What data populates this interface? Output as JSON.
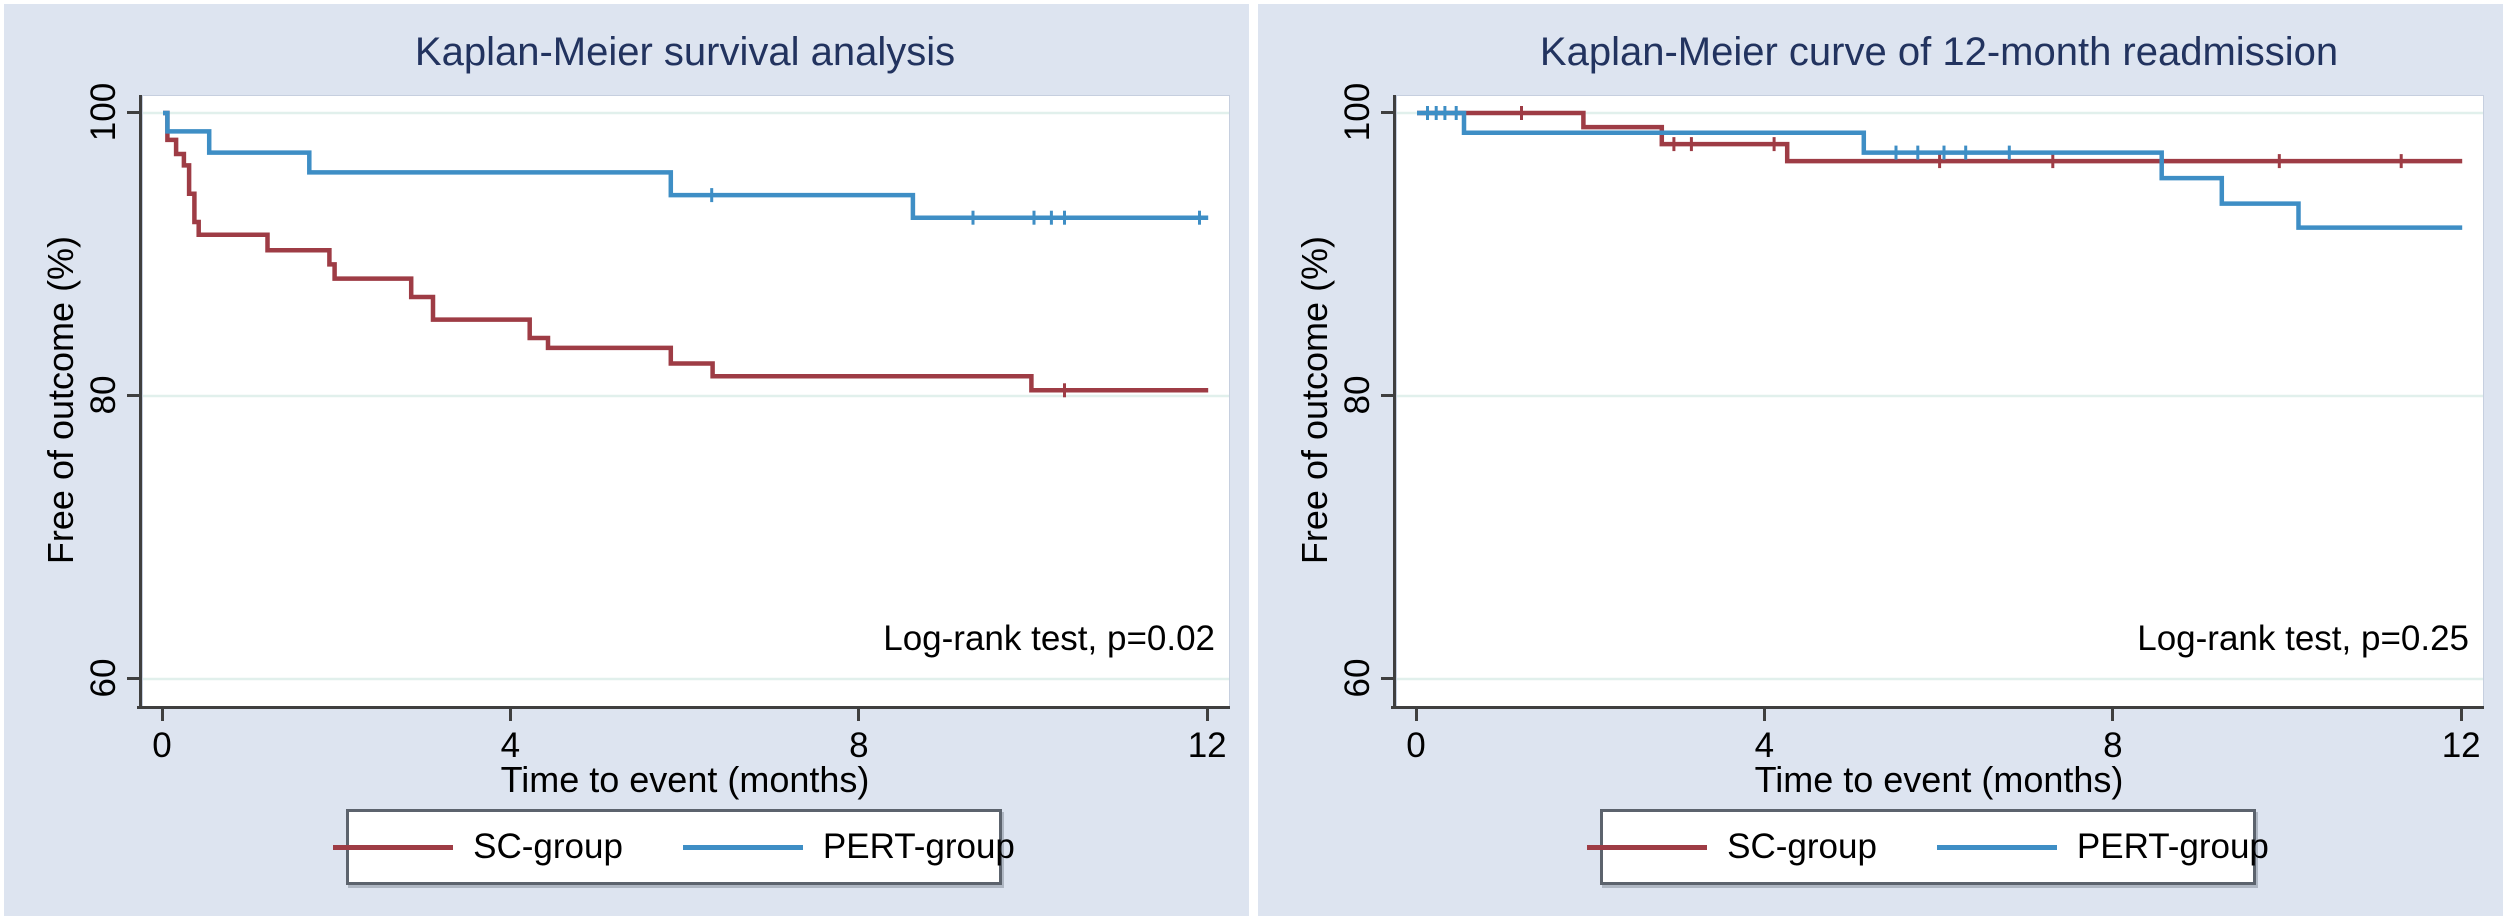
{
  "figure": {
    "background": "#ffffff",
    "panel_background": "#dde4f0",
    "grid_color": "#e1f0ec",
    "axis_color": "#3f3f3f",
    "title_color": "#22335f"
  },
  "legend": {
    "items": [
      {
        "label": "SC-group",
        "color": "#9e3c45"
      },
      {
        "label": "PERT-group",
        "color": "#3e8ec5"
      }
    ]
  },
  "chart_data": [
    {
      "type": "line",
      "subtype": "kaplan-meier-step",
      "title": "Kaplan-Meier survival analysis",
      "ylabel": "Free of outcome (%)",
      "xlabel": "Time to event (months)",
      "annotation": "Log-rank test, p=0.02",
      "xticks": [
        0,
        4,
        8,
        12
      ],
      "yticks": [
        100,
        80,
        60
      ],
      "xlim": [
        0,
        12
      ],
      "grid": "horizontal",
      "legend_position": "bottom-center",
      "series": [
        {
          "name": "SC-group",
          "color": "#9e3c45",
          "steps": [
            [
              0,
              100
            ],
            [
              0.05,
              98.1
            ],
            [
              0.15,
              97.1
            ],
            [
              0.24,
              96.3
            ],
            [
              0.3,
              94.3
            ],
            [
              0.36,
              92.3
            ],
            [
              0.41,
              91.4
            ],
            [
              1.2,
              90.3
            ],
            [
              1.91,
              89.3
            ],
            [
              1.97,
              88.3
            ],
            [
              2.85,
              87.0
            ],
            [
              3.1,
              85.4
            ],
            [
              4.21,
              84.1
            ],
            [
              4.42,
              83.4
            ],
            [
              5.83,
              82.3
            ],
            [
              6.31,
              81.4
            ],
            [
              9.97,
              80.4
            ]
          ],
          "censors": [
            [
              10.35,
              80.4
            ]
          ]
        },
        {
          "name": "PERT-group",
          "color": "#3e8ec5",
          "steps": [
            [
              0,
              100
            ],
            [
              0.05,
              98.7
            ],
            [
              0.53,
              97.2
            ],
            [
              1.68,
              95.8
            ],
            [
              5.83,
              94.2
            ],
            [
              8.61,
              92.6
            ]
          ],
          "censors": [
            [
              6.3,
              94.2
            ],
            [
              9.3,
              92.6
            ],
            [
              10.0,
              92.6
            ],
            [
              10.2,
              92.6
            ],
            [
              10.35,
              92.6
            ],
            [
              11.9,
              92.6
            ]
          ]
        }
      ]
    },
    {
      "type": "line",
      "subtype": "kaplan-meier-step",
      "title": "Kaplan-Meier curve of 12-month readmission",
      "ylabel": "Free of outcome (%)",
      "xlabel": "Time to event (months)",
      "annotation": "Log-rank test, p=0.25",
      "xticks": [
        0,
        4,
        8,
        12
      ],
      "yticks": [
        100,
        80,
        60
      ],
      "xlim": [
        0,
        12
      ],
      "grid": "horizontal",
      "legend_position": "bottom-center",
      "series": [
        {
          "name": "SC-group",
          "color": "#9e3c45",
          "steps": [
            [
              0,
              100
            ],
            [
              1.91,
              99.0
            ],
            [
              2.81,
              97.8
            ],
            [
              4.25,
              96.6
            ]
          ],
          "censors": [
            [
              1.2,
              100
            ],
            [
              2.95,
              97.8
            ],
            [
              3.15,
              97.8
            ],
            [
              4.1,
              97.8
            ],
            [
              6.0,
              96.6
            ],
            [
              7.3,
              96.6
            ],
            [
              9.9,
              96.6
            ],
            [
              11.3,
              96.6
            ]
          ]
        },
        {
          "name": "PERT-group",
          "color": "#3e8ec5",
          "steps": [
            [
              0,
              100
            ],
            [
              0.54,
              98.6
            ],
            [
              5.13,
              97.2
            ],
            [
              8.55,
              95.4
            ],
            [
              9.24,
              93.6
            ],
            [
              10.12,
              91.9
            ]
          ],
          "censors": [
            [
              0.12,
              100
            ],
            [
              0.22,
              100
            ],
            [
              0.32,
              100
            ],
            [
              0.45,
              100
            ],
            [
              5.5,
              97.2
            ],
            [
              5.75,
              97.2
            ],
            [
              6.05,
              97.2
            ],
            [
              6.3,
              97.2
            ],
            [
              6.8,
              97.2
            ]
          ]
        }
      ]
    }
  ]
}
